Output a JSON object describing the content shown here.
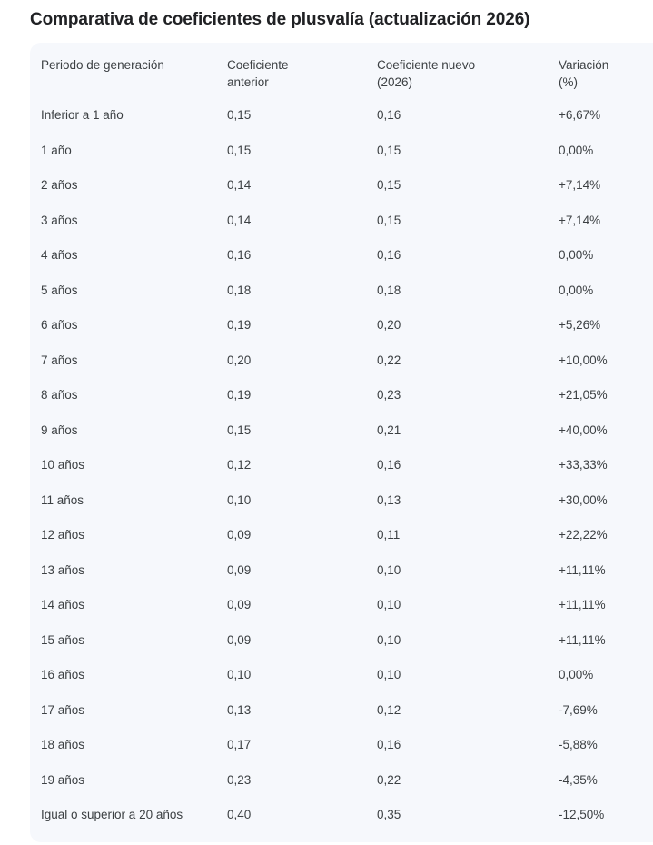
{
  "chart_data": {
    "type": "table",
    "title": "Comparativa de coeficientes de plusvalía (actualización 2026)",
    "columns": [
      "Periodo de generación",
      "Coeficiente anterior",
      "Coeficiente nuevo (2026)",
      "Variación (%)"
    ],
    "rows": [
      [
        "Inferior a 1 año",
        "0,15",
        "0,16",
        "+6,67%"
      ],
      [
        "1 año",
        "0,15",
        "0,15",
        "0,00%"
      ],
      [
        "2 años",
        "0,14",
        "0,15",
        "+7,14%"
      ],
      [
        "3 años",
        "0,14",
        "0,15",
        "+7,14%"
      ],
      [
        "4 años",
        "0,16",
        "0,16",
        "0,00%"
      ],
      [
        "5 años",
        "0,18",
        "0,18",
        "0,00%"
      ],
      [
        "6 años",
        "0,19",
        "0,20",
        "+5,26%"
      ],
      [
        "7 años",
        "0,20",
        "0,22",
        "+10,00%"
      ],
      [
        "8 años",
        "0,19",
        "0,23",
        "+21,05%"
      ],
      [
        "9 años",
        "0,15",
        "0,21",
        "+40,00%"
      ],
      [
        "10 años",
        "0,12",
        "0,16",
        "+33,33%"
      ],
      [
        "11 años",
        "0,10",
        "0,13",
        "+30,00%"
      ],
      [
        "12 años",
        "0,09",
        "0,11",
        "+22,22%"
      ],
      [
        "13 años",
        "0,09",
        "0,10",
        "+11,11%"
      ],
      [
        "14 años",
        "0,09",
        "0,10",
        "+11,11%"
      ],
      [
        "15 años",
        "0,09",
        "0,10",
        "+11,11%"
      ],
      [
        "16 años",
        "0,10",
        "0,10",
        "0,00%"
      ],
      [
        "17 años",
        "0,13",
        "0,12",
        "-7,69%"
      ],
      [
        "18 años",
        "0,17",
        "0,16",
        "-5,88%"
      ],
      [
        "19 años",
        "0,23",
        "0,22",
        "-4,35%"
      ],
      [
        "Igual o superior a 20 años",
        "0,40",
        "0,35",
        "-12,50%"
      ]
    ],
    "layout_hints": {
      "grid": false,
      "row_borders": false,
      "header_position": "top"
    }
  },
  "colors": {
    "card_bg": "#f6f8fc",
    "title_text": "#202124",
    "body_text": "#3c4043"
  }
}
